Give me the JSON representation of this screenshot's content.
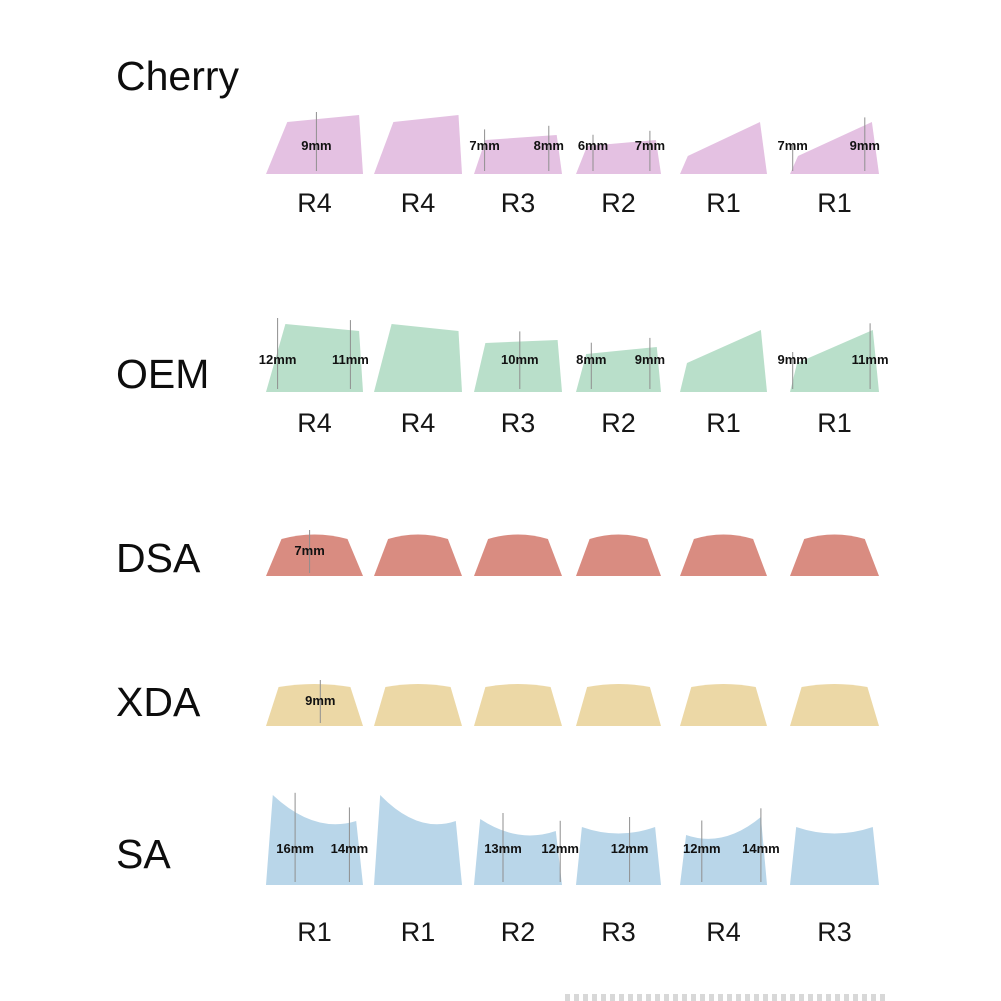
{
  "page": {
    "background": "#ffffff"
  },
  "rows": [
    {
      "label": "Cherry",
      "color": "#e4c1e2",
      "keycaps": [
        {
          "row_label": "R4",
          "variant": "R4",
          "measurements": [
            {
              "text": "9mm",
              "pos": 0.52
            }
          ]
        },
        {
          "row_label": "R4",
          "variant": "R4",
          "measurements": []
        },
        {
          "row_label": "R3",
          "variant": "R3",
          "measurements": [
            {
              "text": "7mm",
              "pos": 0.12
            },
            {
              "text": "8mm",
              "pos": 0.85
            }
          ]
        },
        {
          "row_label": "R2",
          "variant": "R2",
          "measurements": [
            {
              "text": "6mm",
              "pos": 0.2
            },
            {
              "text": "7mm",
              "pos": 0.87
            }
          ]
        },
        {
          "row_label": "R1",
          "variant": "R1",
          "measurements": []
        },
        {
          "row_label": "R1",
          "variant": "R1",
          "measurements": [
            {
              "text": "7mm",
              "pos": 0.03
            },
            {
              "text": "9mm",
              "pos": 0.84
            }
          ]
        }
      ]
    },
    {
      "label": "OEM",
      "color": "#b9dfca",
      "keycaps": [
        {
          "row_label": "R4",
          "variant": "R4",
          "measurements": [
            {
              "text": "12mm",
              "pos": 0.12
            },
            {
              "text": "11mm",
              "pos": 0.87
            }
          ]
        },
        {
          "row_label": "R4",
          "variant": "R4",
          "measurements": []
        },
        {
          "row_label": "R3",
          "variant": "R3",
          "measurements": [
            {
              "text": "10mm",
              "pos": 0.52
            }
          ]
        },
        {
          "row_label": "R2",
          "variant": "R2",
          "measurements": [
            {
              "text": "8mm",
              "pos": 0.18
            },
            {
              "text": "9mm",
              "pos": 0.87
            }
          ]
        },
        {
          "row_label": "R1",
          "variant": "R1",
          "measurements": []
        },
        {
          "row_label": "R1",
          "variant": "R1",
          "measurements": [
            {
              "text": "9mm",
              "pos": 0.03
            },
            {
              "text": "11mm",
              "pos": 0.9
            }
          ]
        }
      ]
    },
    {
      "label": "DSA",
      "color": "#d98c81",
      "keycaps": [
        {
          "row_label": "",
          "variant": "U",
          "measurements": [
            {
              "text": "7mm",
              "pos": 0.45
            }
          ]
        },
        {
          "row_label": "",
          "variant": "U",
          "measurements": []
        },
        {
          "row_label": "",
          "variant": "U",
          "measurements": []
        },
        {
          "row_label": "",
          "variant": "U",
          "measurements": []
        },
        {
          "row_label": "",
          "variant": "U",
          "measurements": []
        },
        {
          "row_label": "",
          "variant": "U",
          "measurements": []
        }
      ]
    },
    {
      "label": "XDA",
      "color": "#ecd8a6",
      "keycaps": [
        {
          "row_label": "",
          "variant": "U",
          "measurements": [
            {
              "text": "9mm",
              "pos": 0.56
            }
          ]
        },
        {
          "row_label": "",
          "variant": "U",
          "measurements": []
        },
        {
          "row_label": "",
          "variant": "U",
          "measurements": []
        },
        {
          "row_label": "",
          "variant": "U",
          "measurements": []
        },
        {
          "row_label": "",
          "variant": "U",
          "measurements": []
        },
        {
          "row_label": "",
          "variant": "U",
          "measurements": []
        }
      ]
    },
    {
      "label": "SA",
      "color": "#b9d6e9",
      "keycaps": [
        {
          "row_label": "R1",
          "variant": "R1",
          "measurements": [
            {
              "text": "16mm",
              "pos": 0.3
            },
            {
              "text": "14mm",
              "pos": 0.86
            }
          ]
        },
        {
          "row_label": "R1",
          "variant": "R1",
          "measurements": []
        },
        {
          "row_label": "R2",
          "variant": "R2",
          "measurements": [
            {
              "text": "13mm",
              "pos": 0.33
            },
            {
              "text": "12mm",
              "pos": 0.98
            }
          ]
        },
        {
          "row_label": "R3",
          "variant": "R3",
          "measurements": [
            {
              "text": "12mm",
              "pos": 0.63
            }
          ]
        },
        {
          "row_label": "R4",
          "variant": "R4",
          "measurements": [
            {
              "text": "12mm",
              "pos": 0.25
            },
            {
              "text": "14mm",
              "pos": 0.93
            }
          ]
        },
        {
          "row_label": "R3",
          "variant": "R3",
          "measurements": []
        }
      ]
    }
  ]
}
